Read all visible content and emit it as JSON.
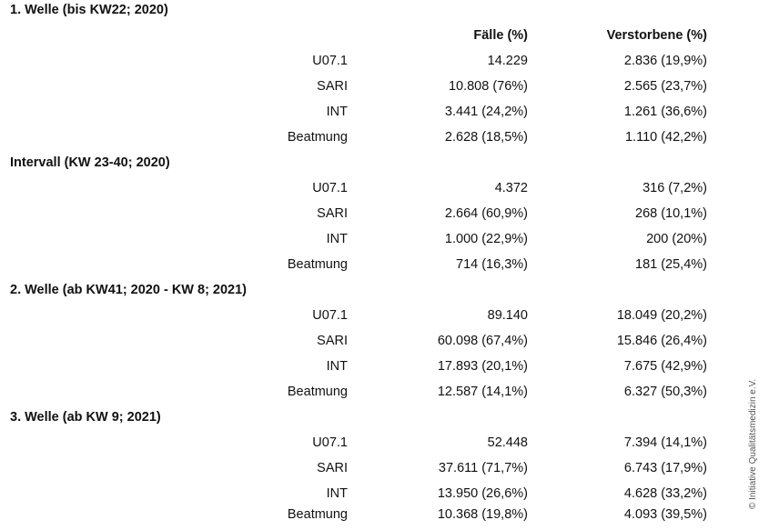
{
  "header": {
    "col_cases": "Fälle (%)",
    "col_deaths": "Verstorbene (%)"
  },
  "sections": [
    {
      "title": "1. Welle (bis KW22; 2020)",
      "rows": [
        {
          "label": "U07.1",
          "cases": "14.229",
          "deaths": "2.836 (19,9%)"
        },
        {
          "label": "SARI",
          "cases": "10.808 (76%)",
          "deaths": "2.565 (23,7%)"
        },
        {
          "label": "INT",
          "cases": "3.441 (24,2%)",
          "deaths": "1.261 (36,6%)"
        },
        {
          "label": "Beatmung",
          "cases": "2.628 (18,5%)",
          "deaths": "1.110 (42,2%)"
        }
      ]
    },
    {
      "title": "Intervall (KW 23-40; 2020)",
      "rows": [
        {
          "label": "U07.1",
          "cases": "4.372",
          "deaths": "316 (7,2%)"
        },
        {
          "label": "SARI",
          "cases": "2.664 (60,9%)",
          "deaths": "268 (10,1%)"
        },
        {
          "label": "INT",
          "cases": "1.000 (22,9%)",
          "deaths": "200 (20%)"
        },
        {
          "label": "Beatmung",
          "cases": "714 (16,3%)",
          "deaths": "181 (25,4%)"
        }
      ]
    },
    {
      "title": "2. Welle (ab KW41; 2020 - KW 8; 2021)",
      "rows": [
        {
          "label": "U07.1",
          "cases": "89.140",
          "deaths": "18.049 (20,2%)"
        },
        {
          "label": "SARI",
          "cases": "60.098 (67,4%)",
          "deaths": "15.846 (26,4%)"
        },
        {
          "label": "INT",
          "cases": "17.893 (20,1%)",
          "deaths": "7.675 (42,9%)"
        },
        {
          "label": "Beatmung",
          "cases": "12.587 (14,1%)",
          "deaths": "6.327 (50,3%)"
        }
      ]
    },
    {
      "title": "3. Welle (ab KW 9; 2021)",
      "rows": [
        {
          "label": "U07.1",
          "cases": "52.448",
          "deaths": "7.394 (14,1%)"
        },
        {
          "label": "SARI",
          "cases": "37.611 (71,7%)",
          "deaths": "6.743 (17,9%)"
        },
        {
          "label": "INT",
          "cases": "13.950 (26,6%)",
          "deaths": "4.628 (33,2%)"
        },
        {
          "label": "Beatmung",
          "cases": "10.368 (19,8%)",
          "deaths": "4.093 (39,5%)"
        }
      ]
    }
  ],
  "copyright": "© Initiative Qualitätsmedizin e.V."
}
